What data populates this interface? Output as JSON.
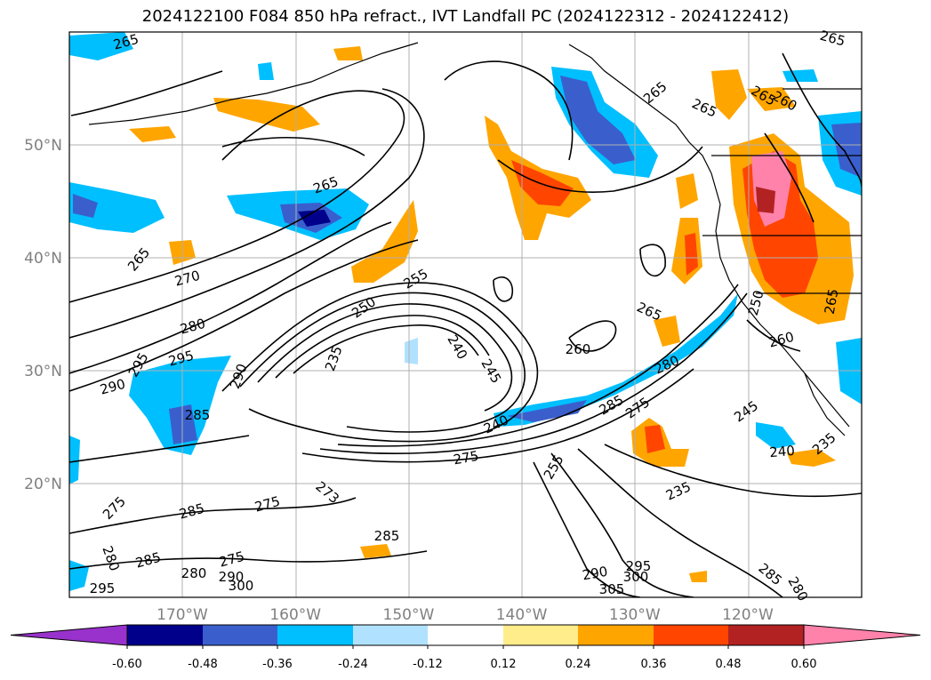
{
  "title": "2024122100 F084 850 hPa refract., IVT Landfall PC (2024122312 - 2024122412)",
  "map": {
    "lat_labels": [
      {
        "text": "50°N",
        "lat": 50
      },
      {
        "text": "40°N",
        "lat": 40
      },
      {
        "text": "30°N",
        "lat": 30
      },
      {
        "text": "20°N",
        "lat": 20
      }
    ],
    "lon_labels": [
      {
        "text": "170°W",
        "lon": -170
      },
      {
        "text": "160°W",
        "lon": -160
      },
      {
        "text": "150°W",
        "lon": -150
      },
      {
        "text": "140°W",
        "lon": -140
      },
      {
        "text": "130°W",
        "lon": -130
      },
      {
        "text": "120°W",
        "lon": -120
      }
    ],
    "contour_labels": [
      "265",
      "265",
      "265",
      "265",
      "265",
      "265",
      "265",
      "270",
      "280",
      "295",
      "295",
      "290",
      "290",
      "285",
      "275",
      "285",
      "275",
      "285",
      "280",
      "275",
      "280",
      "290",
      "300",
      "295",
      "285",
      "273",
      "275",
      "255",
      "250",
      "235",
      "240",
      "245",
      "260",
      "265",
      "240",
      "280",
      "285",
      "260",
      "275",
      "255",
      "235",
      "245",
      "240",
      "235",
      "250",
      "260",
      "265",
      "285",
      "290",
      "295",
      "300",
      "305",
      "280"
    ]
  },
  "colorbar": {
    "ticks": [
      "-0.60",
      "-0.48",
      "-0.36",
      "-0.24",
      "-0.12",
      "0.12",
      "0.24",
      "0.36",
      "0.48",
      "0.60"
    ],
    "colors": [
      "#9932CC",
      "#00008B",
      "#3A5FCD",
      "#00BFFF",
      "#B0E2FF",
      "#FFFFFF",
      "#FFEC8B",
      "#FFA500",
      "#FF4500",
      "#B22222",
      "#FF82AB"
    ]
  }
}
